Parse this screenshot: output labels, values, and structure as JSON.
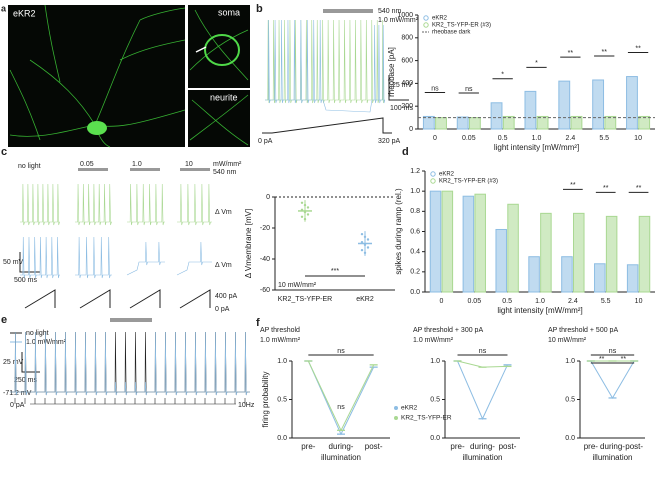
{
  "panels": {
    "a": {
      "label": "a",
      "title": "eKR2",
      "soma": "soma",
      "neurite": "neurite"
    },
    "b": {
      "label": "b",
      "wavelength": "540 nm",
      "intensity": "1.0 mW/mm²",
      "scale_v": "25 mV",
      "scale_t": "100 ms",
      "start": "0 pA",
      "end": "320 pA"
    },
    "c": {
      "label": "c",
      "conditions": [
        "no light",
        "0.05",
        "1.0",
        "10"
      ],
      "unit": "mW/mm²",
      "wavelength": "540 nm",
      "deltas": [
        "Δ Vm",
        "Δ Vm"
      ],
      "scale_v": "50 mV",
      "scale_t": "500 ms",
      "i_max": "400 pA",
      "i_min": "0 pA"
    },
    "d": {
      "label": "d"
    },
    "e": {
      "label": "e",
      "dark": "no light",
      "light": "1.0 mW/mm²",
      "scale_v": "25 mV",
      "scale_t": "250 ms",
      "rest": "-71.2 mV",
      "current": "0 pA",
      "rate": "10Hz"
    },
    "f": {
      "label": "f"
    }
  },
  "chart_data": [
    {
      "type": "bar",
      "ylabel": "rheobase [pA]",
      "xlabel": "light intensity [mW/mm²]",
      "categories": [
        "0",
        "0.05",
        "0.5",
        "1.0",
        "2.4",
        "5.5",
        "10"
      ],
      "series": [
        {
          "name": "eKR2",
          "color": "#8dbde3",
          "values": [
            110,
            105,
            230,
            330,
            420,
            430,
            460
          ]
        },
        {
          "name": "KR2_TS-YFP-ER (#3)",
          "color": "#a9d892",
          "values": [
            100,
            100,
            110,
            110,
            110,
            110,
            110
          ]
        }
      ],
      "reference_line": {
        "name": "rheobase dark",
        "value": 100
      },
      "annotations": [
        "ns",
        "ns",
        "*",
        "*",
        "**",
        "**",
        "**"
      ],
      "ylim": [
        0,
        1000
      ],
      "yticks": [
        0,
        200,
        400,
        600,
        800,
        1000
      ],
      "legend": "upper left"
    },
    {
      "type": "dot",
      "ylabel": "Δ Vmembrane [mV]",
      "categories": [
        "KR2_TS-YFP-ER",
        "eKR2"
      ],
      "colors": [
        "#a9d892",
        "#8dbde3"
      ],
      "values": [
        -9,
        -30
      ],
      "errors": [
        7,
        8
      ],
      "ylim": [
        -60,
        0
      ],
      "yticks": [
        0,
        -20,
        -40,
        -60
      ],
      "annotation": "***",
      "condition": "10 mW/mm²"
    },
    {
      "type": "bar",
      "ylabel": "spikes during ramp (rel.)",
      "xlabel": "light intensity [mW/mm²]",
      "categories": [
        "0",
        "0.05",
        "0.5",
        "1.0",
        "2.4",
        "5.5",
        "10"
      ],
      "series": [
        {
          "name": "eKR2",
          "color": "#8dbde3",
          "values": [
            1.0,
            0.95,
            0.62,
            0.35,
            0.35,
            0.28,
            0.27
          ]
        },
        {
          "name": "KR2_TS-YFP-ER (#3)",
          "color": "#a9d892",
          "values": [
            1.0,
            0.97,
            0.87,
            0.78,
            0.78,
            0.75,
            0.75
          ]
        }
      ],
      "annotations": [
        null,
        null,
        null,
        null,
        "**",
        "**",
        "**"
      ],
      "ylim": [
        0,
        1.2
      ],
      "yticks": [
        {
          "value": 0,
          "label": "0.0"
        },
        0.2,
        0.4,
        0.6,
        0.8,
        {
          "value": 1,
          "label": "1.0"
        },
        1.2
      ],
      "legend": "upper left"
    },
    {
      "type": "line",
      "title": "AP threshold",
      "subtitle": "1.0 mW/mm²",
      "ylabel": "firing probability",
      "xlabel": "illumination",
      "categories": [
        "pre-",
        "during-",
        "post-"
      ],
      "series": [
        {
          "name": "eKR2",
          "color": "#8dbde3",
          "values": [
            1,
            0.05,
            0.92
          ]
        },
        {
          "name": "KR2_TS-YFP-ER",
          "color": "#a9d892",
          "values": [
            1,
            0.1,
            0.95
          ]
        }
      ],
      "annotations": [
        "ns",
        "ns"
      ],
      "ylim": [
        0,
        1
      ],
      "yticks": [
        {
          "value": 0,
          "label": "0.0"
        },
        0.5,
        {
          "value": 1,
          "label": "1.0"
        }
      ],
      "legend": "right"
    },
    {
      "type": "line",
      "title": "AP threshold + 300 pA",
      "subtitle": "1.0 mW/mm²",
      "xlabel": "illumination",
      "categories": [
        "pre-",
        "during-",
        "post-"
      ],
      "series": [
        {
          "color": "#8dbde3",
          "values": [
            1,
            0.25,
            0.95
          ]
        },
        {
          "color": "#a9d892",
          "values": [
            1,
            0.92,
            0.93
          ]
        }
      ],
      "annotations": [
        "ns"
      ],
      "ylim": [
        0,
        1
      ],
      "yticks": [
        {
          "value": 0,
          "label": "0.0"
        },
        0.5,
        {
          "value": 1,
          "label": "1.0"
        }
      ]
    },
    {
      "type": "line",
      "title": "AP threshold + 500 pA",
      "subtitle": "10 mW/mm²",
      "xlabel": "illumination",
      "categories": [
        "pre-",
        "during-",
        "post-"
      ],
      "series": [
        {
          "color": "#8dbde3",
          "values": [
            1,
            0.52,
            1
          ]
        },
        {
          "color": "#a9d892",
          "values": [
            1,
            1,
            1
          ]
        }
      ],
      "annotations": [
        "ns",
        "**",
        "**"
      ],
      "ylim": [
        0,
        1
      ],
      "yticks": [
        {
          "value": 0,
          "label": "0.0"
        },
        0.5,
        {
          "value": 1,
          "label": "1.0"
        }
      ]
    }
  ]
}
